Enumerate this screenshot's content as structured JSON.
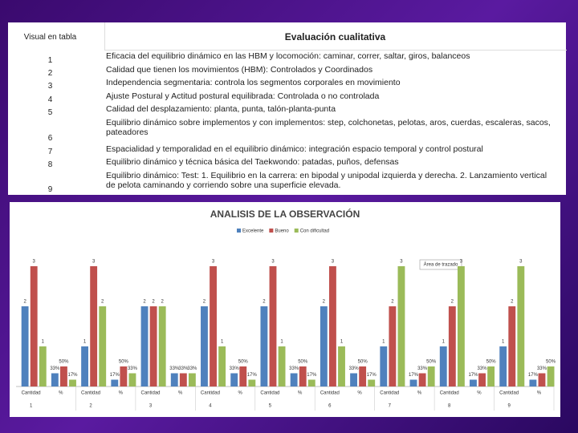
{
  "table": {
    "header": [
      "Visual en tabla",
      "Evaluación cualitativa"
    ],
    "rows": [
      [
        "1",
        "Eficacia del equilibrio dinámico en las HBM y locomoción: caminar, correr, saltar, giros, balanceos"
      ],
      [
        "2",
        "Calidad que tienen los movimientos (HBM): Controlados y Coordinados"
      ],
      [
        "3",
        "Independencia segmentaria: controla los segmentos corporales en movimiento"
      ],
      [
        "4",
        "Ajuste Postural y Actitud postural equilibrada:  Controlada o no controlada"
      ],
      [
        "5",
        "Calidad del desplazamiento: planta, punta, talón-planta-punta"
      ],
      [
        "6",
        "Equilibrio dinámico sobre implementos y con implementos: step, colchonetas, pelotas, aros, cuerdas, escaleras, sacos, pateadores"
      ],
      [
        "7",
        "Espacialidad y temporalidad en el equilibrio dinámico: integración espacio temporal y control postural"
      ],
      [
        "8",
        "Equilibrio dinámico y técnica básica del Taekwondo: patadas, puños, defensas"
      ],
      [
        "9",
        "Equilibrio dinámico: Test: 1. Equilibrio en la carrera: en bipodal y unipodal izquierda y derecha.  2. Lanzamiento vertical de pelota caminando y corriendo sobre una superficie elevada."
      ]
    ]
  },
  "chart_data": {
    "type": "bar",
    "title": "ANALISIS DE LA OBSERVACIÓN",
    "annotation": "Área de trazado",
    "categories": [
      "Cantidad",
      "%",
      "Cantidad",
      "%",
      "Cantidad",
      "%",
      "Cantidad",
      "%",
      "Cantidad",
      "%",
      "Cantidad",
      "%",
      "Cantidad",
      "%",
      "Cantidad",
      "%",
      "Cantidad",
      "%"
    ],
    "groups": [
      "1",
      "2",
      "3",
      "4",
      "5",
      "6",
      "7",
      "8",
      "9"
    ],
    "ylim": [
      0,
      3.4
    ],
    "series": [
      {
        "name": "Excelente",
        "color": "#4f81bd",
        "values": [
          2,
          0.33,
          1,
          0.17,
          2,
          0.33,
          2,
          0.33,
          2,
          0.33,
          2,
          0.33,
          1,
          0.17,
          1,
          0.17,
          1,
          0.17
        ],
        "value_labels": [
          "2",
          "33%",
          "1",
          "17%",
          "2",
          "33%",
          "2",
          "33%",
          "2",
          "33%",
          "2",
          "33%",
          "1",
          "17%",
          "1",
          "17%",
          "1",
          "17%"
        ]
      },
      {
        "name": "Bueno",
        "color": "#c0504d",
        "values": [
          3,
          0.5,
          3,
          0.5,
          2,
          0.33,
          3,
          0.5,
          3,
          0.5,
          3,
          0.5,
          2,
          0.33,
          2,
          0.33,
          2,
          0.33
        ],
        "value_labels": [
          "3",
          "50%",
          "3",
          "50%",
          "2",
          "33%",
          "3",
          "50%",
          "3",
          "50%",
          "3",
          "50%",
          "2",
          "33%",
          "2",
          "33%",
          "2",
          "33%"
        ]
      },
      {
        "name": "Con dificultad",
        "color": "#9bbb59",
        "values": [
          1,
          0.17,
          2,
          0.33,
          2,
          0.33,
          1,
          0.17,
          1,
          0.17,
          1,
          0.17,
          3,
          0.5,
          3,
          0.5,
          3,
          0.5
        ],
        "value_labels": [
          "1",
          "17%",
          "2",
          "33%",
          "2",
          "33%",
          "1",
          "17%",
          "1",
          "17%",
          "1",
          "17%",
          "3",
          "50%",
          "3",
          "50%",
          "3",
          "50%"
        ]
      }
    ]
  }
}
